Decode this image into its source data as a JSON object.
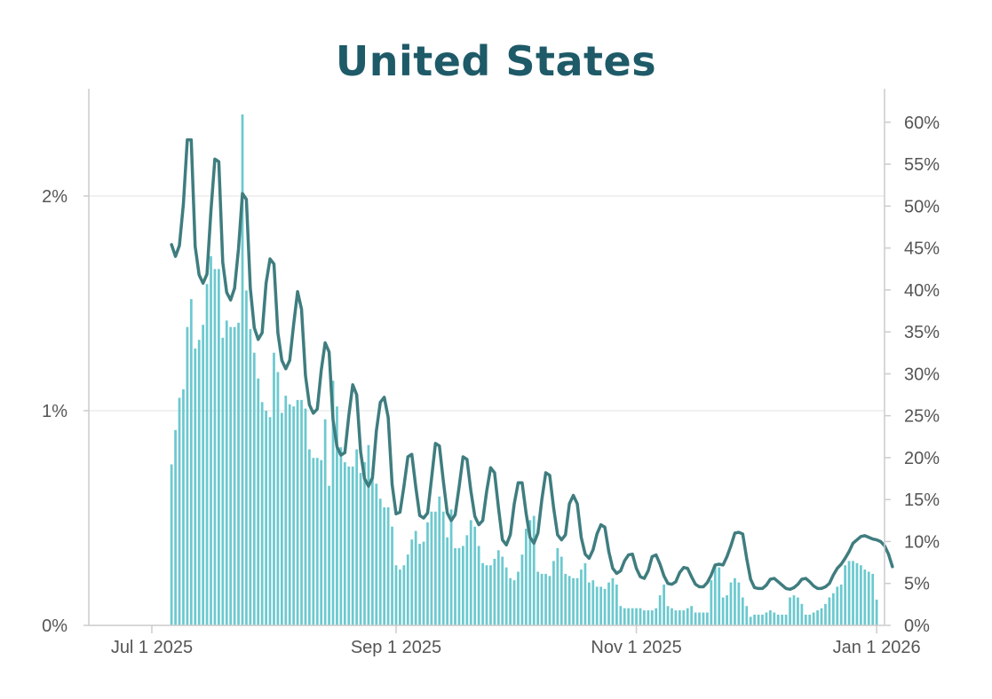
{
  "chart_data": {
    "type": "bar",
    "title": "United States",
    "colors": {
      "title": "#1e5a68",
      "bars": "#6cc9cf",
      "line": "#3f7d7f",
      "axis": "#cccccc",
      "grid": "#ececec",
      "ticks": "#555555"
    },
    "grid": true,
    "legend": "none",
    "x_axis": {
      "type": "date",
      "range": [
        "2025-06-15",
        "2026-01-03"
      ],
      "ticks": [
        {
          "date": "2025-07-01",
          "label": "Jul 1 2025"
        },
        {
          "date": "2025-09-01",
          "label": "Sep 1 2025"
        },
        {
          "date": "2025-11-01",
          "label": "Nov 1 2025"
        },
        {
          "date": "2026-01-01",
          "label": "Jan 1 2026"
        }
      ]
    },
    "y_left": {
      "range": [
        0,
        2.5
      ],
      "ticks": [
        {
          "value": 0,
          "label": "0%"
        },
        {
          "value": 1,
          "label": "1%"
        },
        {
          "value": 2,
          "label": "2%"
        }
      ]
    },
    "y_right": {
      "range": [
        0,
        64
      ],
      "ticks": [
        {
          "value": 0,
          "label": "0%"
        },
        {
          "value": 5,
          "label": "5%"
        },
        {
          "value": 10,
          "label": "10%"
        },
        {
          "value": 15,
          "label": "15%"
        },
        {
          "value": 20,
          "label": "20%"
        },
        {
          "value": 25,
          "label": "25%"
        },
        {
          "value": 30,
          "label": "30%"
        },
        {
          "value": 35,
          "label": "35%"
        },
        {
          "value": 40,
          "label": "40%"
        },
        {
          "value": 45,
          "label": "45%"
        },
        {
          "value": 50,
          "label": "50%"
        },
        {
          "value": 55,
          "label": "55%"
        },
        {
          "value": 60,
          "label": "60%"
        }
      ]
    },
    "bars": {
      "axis": "left",
      "start_date": "2025-07-06",
      "values": [
        0.75,
        0.91,
        1.06,
        1.1,
        1.39,
        1.52,
        1.29,
        1.33,
        1.4,
        1.59,
        1.72,
        1.66,
        1.66,
        1.34,
        1.42,
        1.39,
        1.39,
        1.41,
        2.38,
        1.56,
        1.38,
        1.27,
        1.15,
        1.04,
        1.0,
        0.97,
        1.27,
        1.18,
        0.99,
        1.07,
        1.03,
        1.02,
        1.05,
        1.05,
        1.01,
        0.82,
        0.78,
        0.78,
        0.77,
        0.96,
        0.65,
        1.14,
        1.02,
        0.83,
        0.76,
        0.74,
        0.74,
        0.82,
        0.71,
        0.76,
        0.84,
        0.7,
        0.66,
        0.59,
        0.55,
        0.55,
        0.46,
        0.28,
        0.26,
        0.28,
        0.33,
        0.4,
        0.44,
        0.38,
        0.39,
        0.48,
        0.53,
        0.53,
        0.6,
        0.53,
        0.41,
        0.54,
        0.36,
        0.36,
        0.37,
        0.42,
        0.49,
        0.46,
        0.37,
        0.29,
        0.28,
        0.28,
        0.31,
        0.35,
        0.32,
        0.27,
        0.22,
        0.21,
        0.25,
        0.33,
        0.45,
        0.49,
        0.51,
        0.25,
        0.24,
        0.24,
        0.23,
        0.3,
        0.36,
        0.32,
        0.24,
        0.23,
        0.22,
        0.22,
        0.26,
        0.29,
        0.2,
        0.21,
        0.18,
        0.18,
        0.17,
        0.2,
        0.22,
        0.19,
        0.09,
        0.08,
        0.08,
        0.08,
        0.08,
        0.08,
        0.07,
        0.07,
        0.07,
        0.08,
        0.14,
        0.19,
        0.09,
        0.08,
        0.07,
        0.07,
        0.07,
        0.08,
        0.09,
        0.06,
        0.06,
        0.06,
        0.06,
        0.21,
        0.28,
        0.27,
        0.13,
        0.14,
        0.2,
        0.22,
        0.2,
        0.13,
        0.09,
        0.04,
        0.05,
        0.05,
        0.05,
        0.06,
        0.07,
        0.06,
        0.05,
        0.05,
        0.05,
        0.13,
        0.14,
        0.13,
        0.1,
        0.05,
        0.05,
        0.06,
        0.07,
        0.08,
        0.1,
        0.13,
        0.15,
        0.18,
        0.19,
        0.28,
        0.3,
        0.3,
        0.29,
        0.28,
        0.26,
        0.25,
        0.24,
        0.12
      ]
    },
    "line": {
      "axis": "right",
      "start_date": "2025-07-06",
      "values": [
        45.4,
        44.0,
        45.3,
        50.2,
        57.9,
        57.9,
        45.2,
        41.8,
        40.8,
        41.9,
        49.4,
        55.6,
        55.3,
        43.3,
        39.7,
        38.8,
        40.2,
        44.9,
        51.5,
        50.8,
        40.2,
        35.5,
        34.1,
        34.9,
        40.8,
        43.7,
        43.1,
        34.9,
        31.6,
        30.6,
        31.6,
        35.9,
        39.8,
        37.7,
        29.8,
        26.3,
        25.3,
        25.8,
        30.4,
        33.7,
        32.6,
        24.5,
        21.3,
        20.3,
        20.6,
        25.0,
        28.7,
        27.5,
        20.7,
        17.5,
        16.6,
        17.6,
        23.2,
        26.6,
        27.2,
        24.8,
        16.8,
        13.3,
        13.5,
        16.6,
        20.1,
        20.4,
        16.5,
        13.1,
        12.8,
        13.4,
        17.5,
        21.7,
        21.4,
        17.2,
        13.4,
        12.5,
        13.2,
        16.5,
        20.1,
        19.8,
        16.0,
        13.0,
        12.0,
        12.5,
        16.0,
        18.8,
        18.2,
        14.0,
        10.2,
        9.6,
        10.8,
        14.5,
        17.0,
        17.0,
        13.4,
        10.5,
        9.8,
        11.0,
        15.0,
        18.2,
        17.9,
        14.0,
        10.8,
        10.2,
        10.8,
        14.5,
        15.5,
        14.5,
        10.5,
        8.5,
        8.0,
        9.0,
        10.9,
        12.0,
        11.7,
        8.8,
        6.8,
        6.2,
        6.5,
        7.7,
        8.4,
        8.5,
        6.8,
        5.8,
        5.6,
        6.5,
        8.2,
        8.4,
        7.3,
        5.9,
        5.0,
        4.9,
        5.2,
        6.3,
        6.9,
        6.8,
        5.8,
        4.9,
        4.6,
        4.6,
        5.1,
        6.0,
        7.2,
        7.3,
        7.2,
        8.2,
        9.5,
        11.0,
        11.1,
        10.9,
        8.0,
        5.5,
        4.5,
        4.4,
        4.4,
        4.8,
        5.5,
        5.6,
        5.2,
        4.8,
        4.4,
        4.3,
        4.5,
        4.9,
        5.5,
        5.6,
        5.2,
        4.7,
        4.4,
        4.4,
        4.6,
        5.0,
        6.0,
        6.8,
        7.3,
        8.0,
        8.8,
        9.8,
        10.2,
        10.6,
        10.7,
        10.5,
        10.3,
        10.2,
        10.0,
        9.5,
        8.5,
        7.0
      ]
    }
  }
}
